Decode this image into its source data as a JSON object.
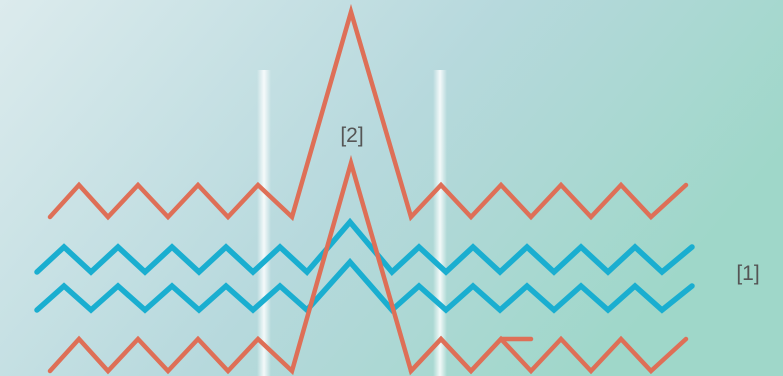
{
  "labels": {
    "peak": "[2]",
    "band": "[1]"
  },
  "colors": {
    "background_light": "#dcebed",
    "background_mid": "#b7d9dd",
    "background_right": "#9fd7c9",
    "orange_line": "#de6f57",
    "blue_line": "#1aaed0",
    "label_text": "#555555",
    "highlight_band": "#ffffff"
  }
}
